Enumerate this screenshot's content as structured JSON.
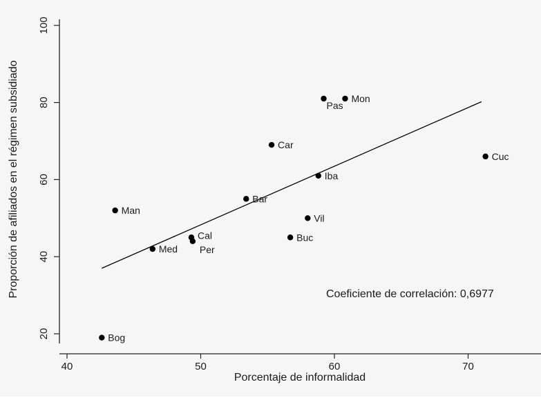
{
  "chart_data": {
    "type": "scatter",
    "xlabel": "Porcentaje de informalidad",
    "ylabel": "Proporción de afiliados en el régimen subsidiado",
    "xlim": [
      40,
      76
    ],
    "ylim": [
      18,
      102
    ],
    "xticks": [
      40,
      50,
      60,
      70
    ],
    "yticks": [
      20,
      40,
      60,
      80,
      100
    ],
    "grid": false,
    "points": [
      {
        "label": "Bog",
        "x": 42.6,
        "y": 19
      },
      {
        "label": "Man",
        "x": 43.6,
        "y": 52
      },
      {
        "label": "Med",
        "x": 46.4,
        "y": 42
      },
      {
        "label": "Cal",
        "x": 49.3,
        "y": 45
      },
      {
        "label": "Per",
        "x": 49.4,
        "y": 44
      },
      {
        "label": "Bar",
        "x": 53.4,
        "y": 55
      },
      {
        "label": "Car",
        "x": 55.3,
        "y": 69
      },
      {
        "label": "Buc",
        "x": 56.7,
        "y": 45
      },
      {
        "label": "Vil",
        "x": 58.0,
        "y": 50
      },
      {
        "label": "Iba",
        "x": 58.8,
        "y": 61
      },
      {
        "label": "Pas",
        "x": 59.2,
        "y": 81
      },
      {
        "label": "Mon",
        "x": 60.8,
        "y": 81
      },
      {
        "label": "Cuc",
        "x": 71.3,
        "y": 66
      }
    ],
    "trendline": {
      "x1": 42.6,
      "y1": 37.0,
      "x2": 71.0,
      "y2": 80.2
    },
    "annotation": "Coeficiente de correlación: 0,6977"
  }
}
